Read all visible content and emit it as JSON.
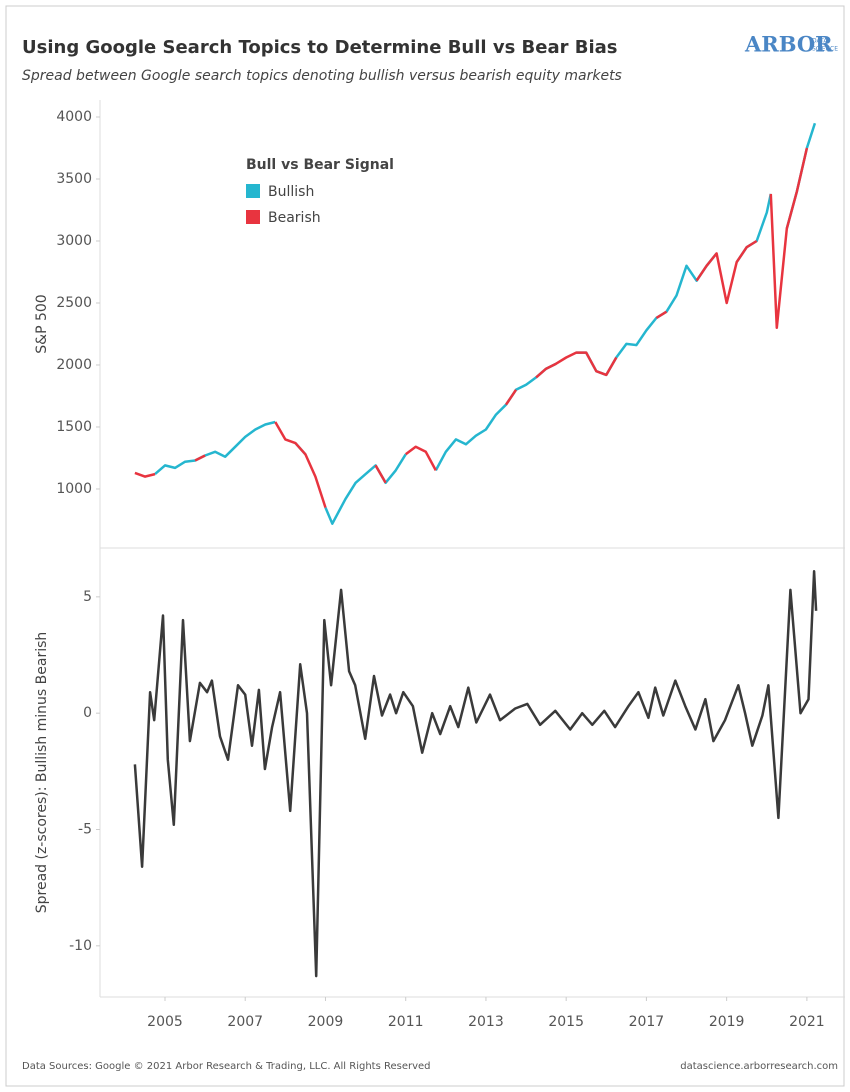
{
  "header": {
    "title": "Using Google Search Topics to Determine Bull vs Bear Bias",
    "subtitle": "Spread between Google search topics denoting bullish versus bearish equity markets",
    "logo": "ARBOR",
    "logo_sub": [
      "DATA",
      "SCIENCE"
    ]
  },
  "chart_data": [
    {
      "type": "line",
      "ylabel": "S&P 500",
      "legend_title": "Bull vs Bear Signal",
      "legend": "upper-left",
      "xlim": [
        2003.38,
        2021.95
      ],
      "ylim": [
        524,
        4137
      ],
      "yticks": [
        1000,
        1500,
        2000,
        2500,
        3000,
        3500,
        4000
      ],
      "x": [
        2004.25,
        2004.5,
        2004.75,
        2005,
        2005.25,
        2005.5,
        2005.75,
        2006,
        2006.25,
        2006.5,
        2006.75,
        2007,
        2007.25,
        2007.5,
        2007.75,
        2008,
        2008.25,
        2008.5,
        2008.75,
        2009,
        2009.17,
        2009.5,
        2009.75,
        2010,
        2010.25,
        2010.5,
        2010.75,
        2011,
        2011.25,
        2011.5,
        2011.75,
        2012,
        2012.25,
        2012.5,
        2012.75,
        2013,
        2013.25,
        2013.5,
        2013.75,
        2014,
        2014.25,
        2014.5,
        2014.75,
        2015,
        2015.25,
        2015.5,
        2015.75,
        2016,
        2016.25,
        2016.5,
        2016.75,
        2017,
        2017.25,
        2017.5,
        2017.75,
        2018,
        2018.25,
        2018.5,
        2018.75,
        2019,
        2019.25,
        2019.5,
        2019.75,
        2020,
        2020.1,
        2020.25,
        2020.5,
        2020.75,
        2021,
        2021.2
      ],
      "series": [
        {
          "name": "Bullish",
          "color": "#25b6cf",
          "values": [
            null,
            null,
            1120,
            1190,
            1170,
            1220,
            1230,
            1270,
            1300,
            1260,
            1340,
            1420,
            1480,
            1520,
            1540,
            null,
            1370,
            1280,
            null,
            850,
            720,
            920,
            1050,
            1120,
            1190,
            1050,
            1150,
            1280,
            null,
            null,
            1150,
            1300,
            1400,
            1360,
            1430,
            1480,
            1600,
            1680,
            1800,
            1840,
            1900,
            1970,
            2010,
            null,
            2100,
            2100,
            1950,
            1920,
            2060,
            2170,
            2160,
            2280,
            2380,
            2430,
            2560,
            2800,
            2680,
            2800,
            2900,
            null,
            2830,
            2950,
            3000,
            3230,
            3380,
            null,
            3100,
            3400,
            3750,
            3950
          ]
        },
        {
          "name": "Bearish",
          "color": "#e8343f",
          "values": [
            1130,
            1100,
            1120,
            null,
            null,
            null,
            1230,
            1270,
            null,
            null,
            null,
            null,
            null,
            null,
            1540,
            1400,
            1370,
            1280,
            1100,
            850,
            null,
            null,
            null,
            null,
            1190,
            1050,
            null,
            1280,
            1340,
            1300,
            1150,
            null,
            null,
            null,
            null,
            null,
            null,
            1680,
            1800,
            null,
            1900,
            1970,
            2010,
            2060,
            2100,
            2100,
            1950,
            1920,
            2060,
            null,
            null,
            null,
            2380,
            2430,
            null,
            null,
            2680,
            2800,
            2900,
            2500,
            2830,
            2950,
            3000,
            null,
            3380,
            2300,
            3100,
            3400,
            3750,
            null
          ]
        }
      ]
    },
    {
      "type": "line",
      "ylabel": "Spread (z-scores): Bullish minus Bearish",
      "xlim": [
        2003.38,
        2021.95
      ],
      "ylim": [
        -12.2,
        7.1
      ],
      "yticks": [
        -10,
        -5,
        0,
        5
      ],
      "xticks": [
        2005,
        2007,
        2009,
        2011,
        2013,
        2015,
        2017,
        2019,
        2021
      ],
      "x": [
        2004.25,
        2004.43,
        2004.63,
        2004.73,
        2004.95,
        2005.07,
        2005.22,
        2005.45,
        2005.62,
        2005.87,
        2006.05,
        2006.17,
        2006.37,
        2006.57,
        2006.82,
        2007.0,
        2007.17,
        2007.34,
        2007.49,
        2007.67,
        2007.87,
        2008.12,
        2008.37,
        2008.54,
        2008.77,
        2008.97,
        2009.14,
        2009.39,
        2009.59,
        2009.74,
        2009.99,
        2010.21,
        2010.41,
        2010.61,
        2010.76,
        2010.94,
        2011.18,
        2011.41,
        2011.66,
        2011.86,
        2012.11,
        2012.31,
        2012.56,
        2012.76,
        2013.1,
        2013.35,
        2013.73,
        2014.03,
        2014.35,
        2014.73,
        2015.1,
        2015.4,
        2015.65,
        2015.95,
        2016.22,
        2016.55,
        2016.8,
        2017.05,
        2017.22,
        2017.42,
        2017.72,
        2017.97,
        2018.22,
        2018.47,
        2018.67,
        2018.96,
        2019.29,
        2019.46,
        2019.64,
        2019.89,
        2020.04,
        2020.29,
        2020.59,
        2020.84,
        2021.04,
        2021.18,
        2021.23
      ],
      "series": [
        {
          "name": "Spread",
          "color": "#3a3a3a",
          "values": [
            -2.2,
            -6.6,
            0.9,
            -0.3,
            4.2,
            -2.0,
            -4.8,
            4.0,
            -1.2,
            1.3,
            0.9,
            1.4,
            -1.0,
            -2.0,
            1.2,
            0.8,
            -1.4,
            1.0,
            -2.4,
            -0.6,
            0.9,
            -4.2,
            2.1,
            0,
            -11.3,
            4.0,
            1.2,
            5.3,
            1.8,
            1.2,
            -1.1,
            1.6,
            -0.1,
            0.8,
            0,
            0.9,
            0.3,
            -1.7,
            0,
            -0.9,
            0.3,
            -0.6,
            1.1,
            -0.4,
            0.8,
            -0.3,
            0.2,
            0.4,
            -0.5,
            0.1,
            -0.7,
            0,
            -0.5,
            0.1,
            -0.6,
            0.3,
            0.9,
            -0.2,
            1.1,
            -0.1,
            1.4,
            0.3,
            -0.7,
            0.6,
            -1.2,
            -0.3,
            1.2,
            0,
            -1.4,
            -0.1,
            1.2,
            -4.5,
            5.3,
            0,
            0.6,
            6.1,
            4.4
          ]
        }
      ]
    }
  ],
  "footer": {
    "source": "Data Sources: Google © 2021 Arbor Research & Trading, LLC. All Rights Reserved",
    "url": "datascience.arborresearch.com"
  }
}
